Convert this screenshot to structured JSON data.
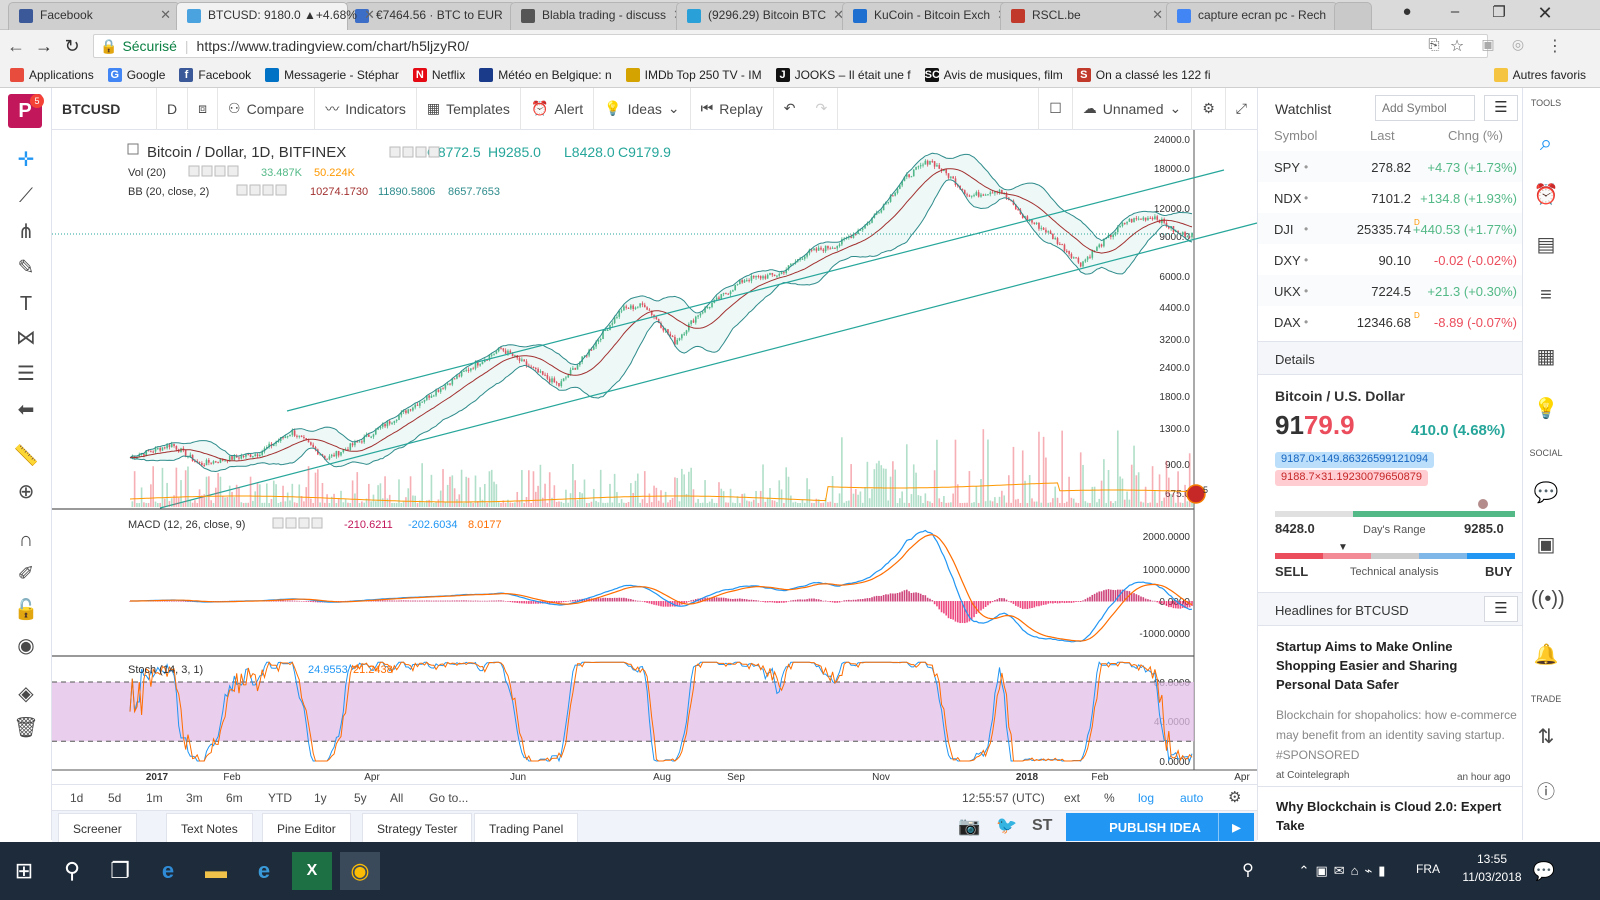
{
  "browser": {
    "tabs": [
      {
        "title": "Facebook",
        "color": "#3b5998",
        "active": false
      },
      {
        "title": "BTCUSD: 9180.0 ▲+4.68%",
        "color": "#4aa3df",
        "active": true
      },
      {
        "title": "€7464.56 · BTC to EUR",
        "color": "#3d6ec7",
        "active": false
      },
      {
        "title": "Blabla trading - discuss",
        "color": "#555555",
        "active": false
      },
      {
        "title": "(9296.29) Bitcoin BTC",
        "color": "#2aa0d8",
        "active": false
      },
      {
        "title": "KuCoin - Bitcoin Exch",
        "color": "#1e6fd0",
        "active": false
      },
      {
        "title": "RSCL.be",
        "color": "#c0392b",
        "active": false
      },
      {
        "title": "capture ecran pc - Rech",
        "color": "#4285f4",
        "active": false
      }
    ],
    "secure_label": "Sécurisé",
    "url": "https://www.tradingview.com/chart/h5ljzyR0/",
    "bookmarks": [
      {
        "label": "Applications",
        "icon_text": "",
        "color": "#e74c3c"
      },
      {
        "label": "Google",
        "icon_text": "G",
        "color": "#4285f4"
      },
      {
        "label": "Facebook",
        "icon_text": "f",
        "color": "#3b5998"
      },
      {
        "label": "Messagerie - Stéphar",
        "icon_text": "",
        "color": "#0072c6"
      },
      {
        "label": "Netflix",
        "icon_text": "N",
        "color": "#e50914"
      },
      {
        "label": "Météo en Belgique: n",
        "icon_text": "",
        "color": "#1a3a8a"
      },
      {
        "label": "IMDb Top 250 TV - IM",
        "icon_text": "",
        "color": "#d4a300"
      },
      {
        "label": "JOOKS – Il était une f",
        "icon_text": "J",
        "color": "#111111"
      },
      {
        "label": "Avis de musiques, film",
        "icon_text": "SC",
        "color": "#111111"
      },
      {
        "label": "On a classé les 122 fi",
        "icon_text": "S",
        "color": "#c0392b"
      }
    ],
    "other_bookmarks": "Autres favoris"
  },
  "toolbar": {
    "symbol": "BTCUSD",
    "interval": "D",
    "compare": "Compare",
    "indicators": "Indicators",
    "templates": "Templates",
    "alert": "Alert",
    "ideas": "Ideas",
    "replay": "Replay",
    "layout_name": "Unnamed",
    "notification_count": "5"
  },
  "legend": {
    "title": "Bitcoin / Dollar, 1D, BITFINEX",
    "open": "O8772.5",
    "high": "H9285.0",
    "low": "L8428.0",
    "close": "C9179.9",
    "vol_label": "Vol (20)",
    "vol_1": "33.487K",
    "vol_2": "50.224K",
    "bb_label": "BB (20, close, 2)",
    "bb_1": "10274.1730",
    "bb_2": "11890.5806",
    "bb_3": "8657.7653",
    "macd_label": "MACD (12, 26, close, 9)",
    "macd_1": "-210.6211",
    "macd_2": "-202.6034",
    "macd_3": "8.0177",
    "stoch_label": "Stoch (14, 3, 1)",
    "stoch_1": "24.9553",
    "stoch_2": "21.2438"
  },
  "price_axis": [
    "24000.0",
    "18000.0",
    "12000.0",
    "9000.0",
    "6000.0",
    "4400.0",
    "3200.0",
    "2400.0",
    "1800.0",
    "1300.0",
    "900.0",
    "675.0"
  ],
  "macd_axis": [
    "2000.0000",
    "1000.0000",
    "0.0000",
    "-1000.0000"
  ],
  "stoch_axis": [
    "80.0000",
    "40.0000",
    "0.0000"
  ],
  "time_axis": [
    "2017",
    "Feb",
    "Apr",
    "Jun",
    "Aug",
    "Sep",
    "Nov",
    "2018",
    "Feb",
    "Apr"
  ],
  "price_marker": "5",
  "ranges": [
    "1d",
    "5d",
    "1m",
    "3m",
    "6m",
    "YTD",
    "1y",
    "5y",
    "All"
  ],
  "goto": "Go to...",
  "clock": "12:55:57 (UTC)",
  "scale_opts": [
    "ext",
    "%",
    "log",
    "auto"
  ],
  "bottom_tabs": [
    "Screener",
    "Text Notes",
    "Pine Editor",
    "Strategy Tester",
    "Trading Panel"
  ],
  "publish_label": "PUBLISH IDEA",
  "watchlist": {
    "title": "Watchlist",
    "add_placeholder": "Add Symbol",
    "headers": [
      "Symbol",
      "Last",
      "Chng (%)"
    ],
    "rows": [
      {
        "symbol": "SPY",
        "last": "278.82",
        "change": "+4.73 (+1.73%)",
        "dir": "up",
        "flag": ""
      },
      {
        "symbol": "NDX",
        "last": "7101.2",
        "change": "+134.8 (+1.93%)",
        "dir": "up",
        "flag": ""
      },
      {
        "symbol": "DJI",
        "last": "25335.74",
        "change": "+440.53 (+1.77%)",
        "dir": "up",
        "flag": "D"
      },
      {
        "symbol": "DXY",
        "last": "90.10",
        "change": "-0.02 (-0.02%)",
        "dir": "down",
        "flag": ""
      },
      {
        "symbol": "UKX",
        "last": "7224.5",
        "change": "+21.3 (+0.30%)",
        "dir": "up",
        "flag": ""
      },
      {
        "symbol": "DAX",
        "last": "12346.68",
        "change": "-8.89 (-0.07%)",
        "dir": "down",
        "flag": "D"
      }
    ]
  },
  "details": {
    "title": "Details",
    "name": "Bitcoin / U.S. Dollar",
    "price_main": "91",
    "price_hi": "79.9",
    "change": "410.0 (4.68%)",
    "bid": "9187.0×149.86326599121094",
    "ask": "9188.7×31.19230079650879",
    "day_low": "8428.0",
    "day_high": "9285.0",
    "day_range_label": "Day's Range",
    "sell": "SELL",
    "buy": "BUY",
    "tech_label": "Technical analysis"
  },
  "headlines": {
    "title": "Headlines for BTCUSD",
    "items": [
      {
        "headline": "Startup Aims to Make Online Shopping Easier and Sharing Personal Data Safer",
        "body": "Blockchain for shopaholics: how e-commerce may benefit from an identity saving startup. #SPONSORED",
        "source": "at Cointelegraph",
        "time": "an hour ago"
      },
      {
        "headline": "Why Blockchain is Cloud 2.0: Expert Take"
      }
    ]
  },
  "rightnav_labels": {
    "tools": "TOOLS",
    "social": "SOCIAL",
    "trade": "TRADE"
  },
  "taskbar": {
    "lang": "FRA",
    "time": "13:55",
    "date": "11/03/2018"
  },
  "colors": {
    "up": "#53b987",
    "down": "#eb4d5c",
    "accent": "#2196f3",
    "bb": "#2e8b8b",
    "channel": "#26a69a",
    "macd": "#2196f3",
    "signal": "#ff6d00",
    "stoch_bg": "#e1bee7"
  }
}
